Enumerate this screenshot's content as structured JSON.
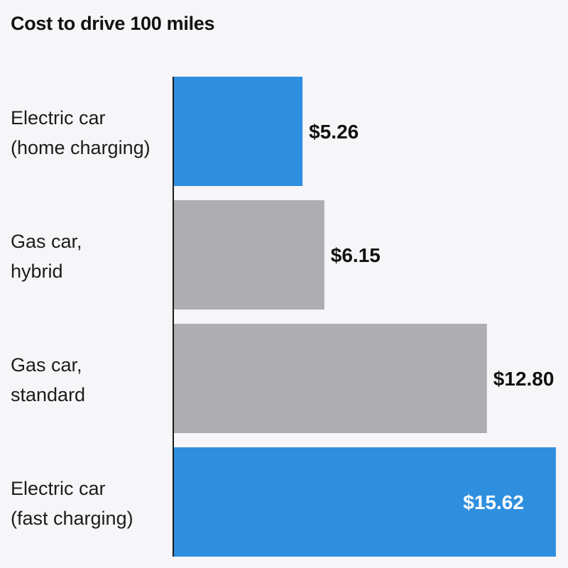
{
  "chart_data": {
    "type": "bar",
    "orientation": "horizontal",
    "title": "Cost to drive 100 miles",
    "categories": [
      [
        "Electric car",
        "(home charging)"
      ],
      [
        "Gas car,",
        "hybrid"
      ],
      [
        "Gas car,",
        "standard"
      ],
      [
        "Electric car",
        "(fast charging)"
      ]
    ],
    "values": [
      5.26,
      6.15,
      12.8,
      15.62
    ],
    "value_labels": [
      "$5.26",
      "$6.15",
      "$12.80",
      "$15.62"
    ],
    "bar_colors": [
      "#2f8fdf",
      "#aeadb0",
      "#aeadb0",
      "#2f8fdf"
    ],
    "value_label_colors": [
      "#111111",
      "#111111",
      "#111111",
      "#ffffff"
    ],
    "value_label_placement": [
      "outside",
      "outside",
      "outside",
      "inside"
    ],
    "xlim": [
      0,
      16
    ],
    "grid": false,
    "legend": "none"
  }
}
